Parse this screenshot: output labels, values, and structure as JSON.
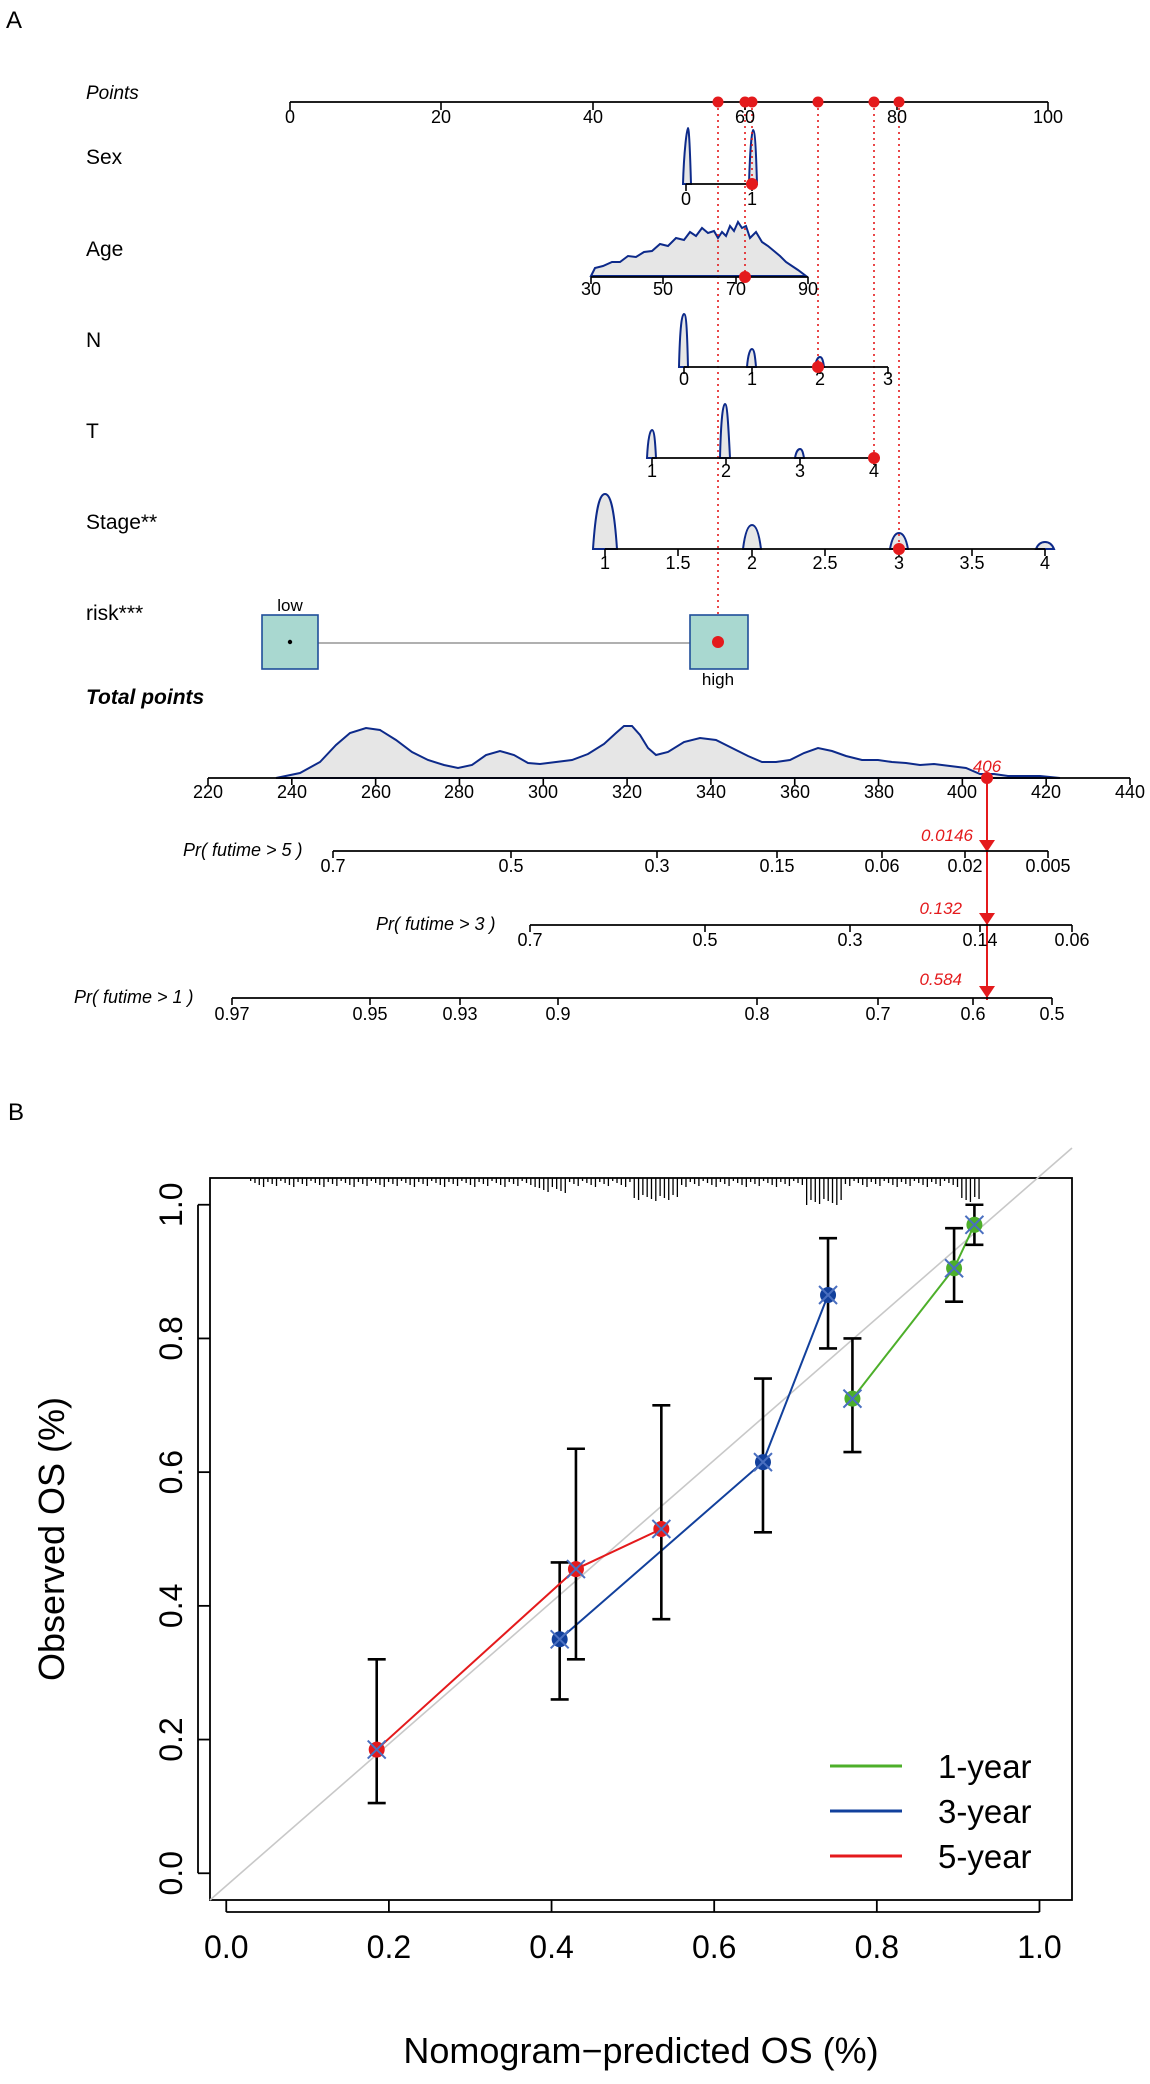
{
  "colors": {
    "axis": "#000000",
    "point_red": "#e41a1c",
    "dotted_red": "#e41a1c",
    "density_line": "#0d2a8a",
    "density_fill": "#e6e6e6",
    "box_fill": "#a9d8d0",
    "box_stroke": "#1f4e9a",
    "year1": "#4daf2a",
    "year3": "#12409c",
    "year5": "#e41a1c",
    "diagonal": "#c8c8c8"
  },
  "panel_a": {
    "label": "A",
    "points_label": "Points",
    "points_ticks": [
      "0",
      "20",
      "40",
      "60",
      "80",
      "100"
    ],
    "variables": [
      {
        "label": "Sex",
        "ticks": [
          "0",
          "1"
        ],
        "selected": "1",
        "points": 61.5
      },
      {
        "label": "Age",
        "ticks": [
          "30",
          "50",
          "70",
          "90"
        ],
        "selected": "72",
        "points": 60.5
      },
      {
        "label": "N",
        "ticks": [
          "0",
          "1",
          "2",
          "3"
        ],
        "selected": "2",
        "points": 70.7
      },
      {
        "label": "T",
        "ticks": [
          "1",
          "2",
          "3",
          "4"
        ],
        "selected": "4",
        "points": 78.3
      },
      {
        "label": "Stage**",
        "ticks": [
          "1",
          "1.5",
          "2",
          "2.5",
          "3",
          "3.5",
          "4"
        ],
        "selected": "3",
        "points": 81.7
      },
      {
        "label": "risk***",
        "levels": [
          "low",
          "high"
        ],
        "selected": "high",
        "points": 56.8
      }
    ],
    "total_points": {
      "label": "Total points",
      "ticks": [
        "220",
        "240",
        "260",
        "280",
        "300",
        "320",
        "340",
        "360",
        "380",
        "400",
        "420",
        "440"
      ],
      "value_label": "406",
      "value": 406
    },
    "probabilities": [
      {
        "label": "Pr( futime > 5 )",
        "ticks": [
          "0.7",
          "0.5",
          "0.3",
          "0.15",
          "0.06",
          "0.02",
          "0.005"
        ],
        "value_label": "0.0146"
      },
      {
        "label": "Pr( futime > 3 )",
        "ticks": [
          "0.7",
          "0.5",
          "0.3",
          "0.14",
          "0.06"
        ],
        "value_label": "0.132"
      },
      {
        "label": "Pr( futime > 1 )",
        "ticks": [
          "0.97",
          "0.95",
          "0.93",
          "0.9",
          "0.8",
          "0.7",
          "0.6",
          "0.5"
        ],
        "value_label": "0.584"
      }
    ]
  },
  "chart_data": {
    "type": "scatter",
    "panel_label": "B",
    "xlabel": "Nomogram−predicted OS (%)",
    "ylabel": "Observed OS (%)",
    "xlim": [
      -0.02,
      1.04
    ],
    "ylim": [
      -0.04,
      1.04
    ],
    "x_ticks": [
      "0.0",
      "0.2",
      "0.4",
      "0.6",
      "0.8",
      "1.0"
    ],
    "y_ticks": [
      "0.0",
      "0.2",
      "0.4",
      "0.6",
      "0.8",
      "1.0"
    ],
    "legend_position": "bottom-right",
    "series": [
      {
        "name": "1-year",
        "color_key": "year1",
        "points": [
          {
            "x": 0.77,
            "y": 0.71,
            "lo": 0.63,
            "hi": 0.8
          },
          {
            "x": 0.895,
            "y": 0.905,
            "lo": 0.855,
            "hi": 0.965
          },
          {
            "x": 0.92,
            "y": 0.97,
            "lo": 0.94,
            "hi": 1.0
          }
        ]
      },
      {
        "name": "3-year",
        "color_key": "year3",
        "points": [
          {
            "x": 0.41,
            "y": 0.35,
            "lo": 0.26,
            "hi": 0.465
          },
          {
            "x": 0.66,
            "y": 0.615,
            "lo": 0.51,
            "hi": 0.74
          },
          {
            "x": 0.74,
            "y": 0.865,
            "lo": 0.785,
            "hi": 0.95
          }
        ]
      },
      {
        "name": "5-year",
        "color_key": "year5",
        "points": [
          {
            "x": 0.185,
            "y": 0.185,
            "lo": 0.105,
            "hi": 0.32
          },
          {
            "x": 0.43,
            "y": 0.455,
            "lo": 0.32,
            "hi": 0.635
          },
          {
            "x": 0.535,
            "y": 0.515,
            "lo": 0.38,
            "hi": 0.7
          }
        ]
      }
    ]
  }
}
